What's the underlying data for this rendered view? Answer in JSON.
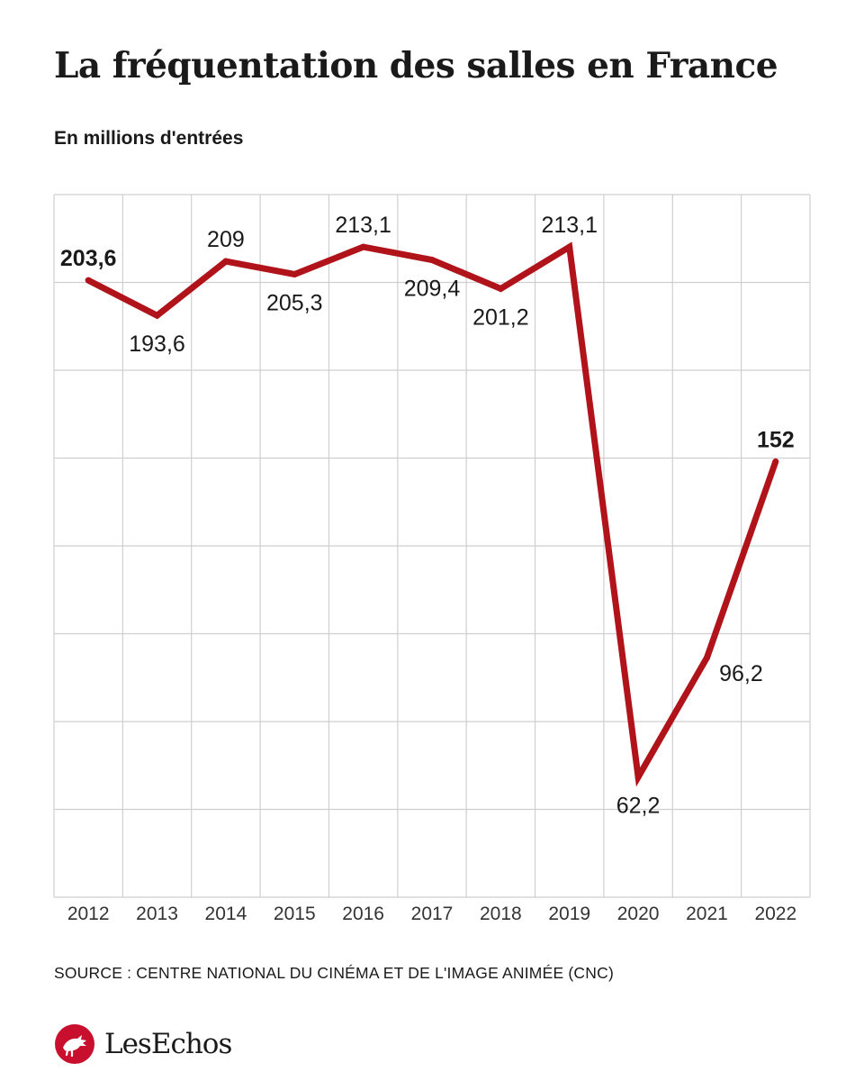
{
  "chart_data": {
    "type": "line",
    "title": "La fréquentation des salles en France",
    "subtitle": "En millions d'entrées",
    "xlabel": "",
    "ylabel": "",
    "categories": [
      "2012",
      "2013",
      "2014",
      "2015",
      "2016",
      "2017",
      "2018",
      "2019",
      "2020",
      "2021",
      "2022"
    ],
    "series": [
      {
        "name": "Entrées",
        "values": [
          203.6,
          193.6,
          209,
          205.3,
          213.1,
          209.4,
          201.2,
          213.1,
          62.2,
          96.2,
          152
        ],
        "labels": [
          "203,6",
          "193,6",
          "209",
          "205,3",
          "213,1",
          "209,4",
          "201,2",
          "213,1",
          "62,2",
          "96,2",
          "152"
        ],
        "color": "#b01319"
      }
    ],
    "ylim": [
      28,
      228
    ],
    "grid": true,
    "source": "SOURCE : CENTRE NATIONAL DU CINÉMA ET DE L'IMAGE ANIMÉE (CNC)"
  },
  "colors": {
    "line": "#b01319",
    "grid": "#cfcfcf",
    "text": "#1a1a1a",
    "logo": "#c8102e"
  },
  "logo": {
    "icon": "rooster-icon",
    "text": "LesEchos"
  }
}
